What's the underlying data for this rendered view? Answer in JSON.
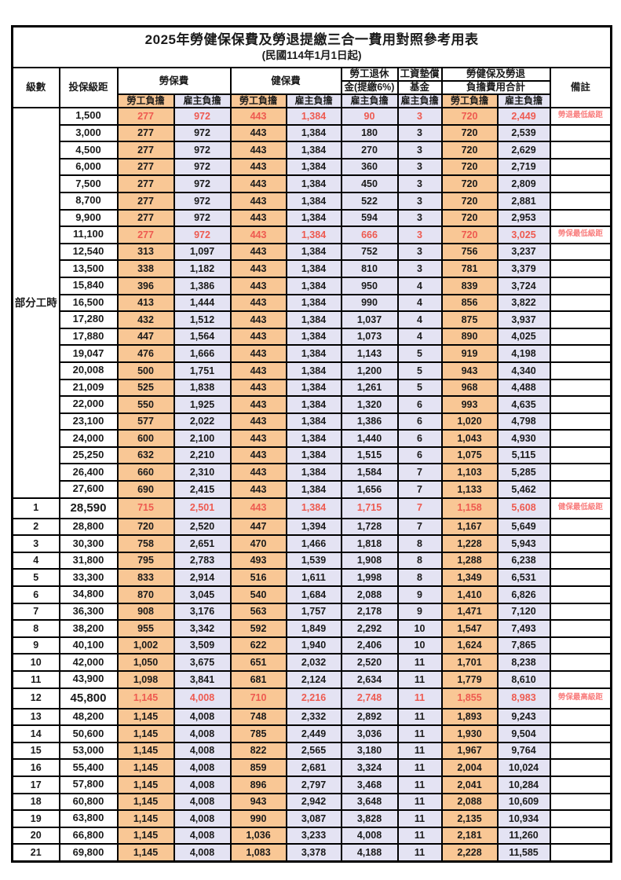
{
  "title": "2025年勞健保保費及勞退提繳三合一費用對照參考用表",
  "subtitle": "(民國114年1月1日起)",
  "header": {
    "level": "級數",
    "bracket": "投保級距",
    "labor_fee": "勞保費",
    "health_fee": "健保費",
    "pension_line1": "勞工退休",
    "pension_line2": "金(提繳6%)",
    "wage_fund_line1": "工資墊償",
    "wage_fund_line2": "基金",
    "total_line1": "勞健保及勞退",
    "total_line2": "負擔費用合計",
    "remark": "備註",
    "employee": "勞工負擔",
    "employer": "雇主負擔"
  },
  "part_time_label": "部分工時",
  "part_time_rowspan": 23,
  "colors": {
    "employee_bg": "#f9c795",
    "employer_bg": "#e4e3f3",
    "highlight_red": "#ee5a50",
    "note_red": "#f98080"
  },
  "rows": [
    {
      "level": "",
      "bracket": "1,500",
      "values": [
        "277",
        "972",
        "443",
        "1,384",
        "90",
        "3",
        "720",
        "2,449"
      ],
      "red": true,
      "note": "勞退最低級距",
      "em": false
    },
    {
      "level": "",
      "bracket": "3,000",
      "values": [
        "277",
        "972",
        "443",
        "1,384",
        "180",
        "3",
        "720",
        "2,539"
      ],
      "red": false,
      "note": "",
      "em": false
    },
    {
      "level": "",
      "bracket": "4,500",
      "values": [
        "277",
        "972",
        "443",
        "1,384",
        "270",
        "3",
        "720",
        "2,629"
      ],
      "red": false,
      "note": "",
      "em": false
    },
    {
      "level": "",
      "bracket": "6,000",
      "values": [
        "277",
        "972",
        "443",
        "1,384",
        "360",
        "3",
        "720",
        "2,719"
      ],
      "red": false,
      "note": "",
      "em": false
    },
    {
      "level": "",
      "bracket": "7,500",
      "values": [
        "277",
        "972",
        "443",
        "1,384",
        "450",
        "3",
        "720",
        "2,809"
      ],
      "red": false,
      "note": "",
      "em": false
    },
    {
      "level": "",
      "bracket": "8,700",
      "values": [
        "277",
        "972",
        "443",
        "1,384",
        "522",
        "3",
        "720",
        "2,881"
      ],
      "red": false,
      "note": "",
      "em": false
    },
    {
      "level": "",
      "bracket": "9,900",
      "values": [
        "277",
        "972",
        "443",
        "1,384",
        "594",
        "3",
        "720",
        "2,953"
      ],
      "red": false,
      "note": "",
      "em": false
    },
    {
      "level": "",
      "bracket": "11,100",
      "values": [
        "277",
        "972",
        "443",
        "1,384",
        "666",
        "3",
        "720",
        "3,025"
      ],
      "red": true,
      "note": "勞保最低級距",
      "em": false
    },
    {
      "level": "",
      "bracket": "12,540",
      "values": [
        "313",
        "1,097",
        "443",
        "1,384",
        "752",
        "3",
        "756",
        "3,237"
      ],
      "red": false,
      "note": "",
      "em": false
    },
    {
      "level": "",
      "bracket": "13,500",
      "values": [
        "338",
        "1,182",
        "443",
        "1,384",
        "810",
        "3",
        "781",
        "3,379"
      ],
      "red": false,
      "note": "",
      "em": false
    },
    {
      "level": "",
      "bracket": "15,840",
      "values": [
        "396",
        "1,386",
        "443",
        "1,384",
        "950",
        "4",
        "839",
        "3,724"
      ],
      "red": false,
      "note": "",
      "em": false
    },
    {
      "level": "",
      "bracket": "16,500",
      "values": [
        "413",
        "1,444",
        "443",
        "1,384",
        "990",
        "4",
        "856",
        "3,822"
      ],
      "red": false,
      "note": "",
      "em": false
    },
    {
      "level": "",
      "bracket": "17,280",
      "values": [
        "432",
        "1,512",
        "443",
        "1,384",
        "1,037",
        "4",
        "875",
        "3,937"
      ],
      "red": false,
      "note": "",
      "em": false
    },
    {
      "level": "",
      "bracket": "17,880",
      "values": [
        "447",
        "1,564",
        "443",
        "1,384",
        "1,073",
        "4",
        "890",
        "4,025"
      ],
      "red": false,
      "note": "",
      "em": false
    },
    {
      "level": "",
      "bracket": "19,047",
      "values": [
        "476",
        "1,666",
        "443",
        "1,384",
        "1,143",
        "5",
        "919",
        "4,198"
      ],
      "red": false,
      "note": "",
      "em": false
    },
    {
      "level": "",
      "bracket": "20,008",
      "values": [
        "500",
        "1,751",
        "443",
        "1,384",
        "1,200",
        "5",
        "943",
        "4,340"
      ],
      "red": false,
      "note": "",
      "em": false
    },
    {
      "level": "",
      "bracket": "21,009",
      "values": [
        "525",
        "1,838",
        "443",
        "1,384",
        "1,261",
        "5",
        "968",
        "4,488"
      ],
      "red": false,
      "note": "",
      "em": false
    },
    {
      "level": "",
      "bracket": "22,000",
      "values": [
        "550",
        "1,925",
        "443",
        "1,384",
        "1,320",
        "6",
        "993",
        "4,635"
      ],
      "red": false,
      "note": "",
      "em": false
    },
    {
      "level": "",
      "bracket": "23,100",
      "values": [
        "577",
        "2,022",
        "443",
        "1,384",
        "1,386",
        "6",
        "1,020",
        "4,798"
      ],
      "red": false,
      "note": "",
      "em": false
    },
    {
      "level": "",
      "bracket": "24,000",
      "values": [
        "600",
        "2,100",
        "443",
        "1,384",
        "1,440",
        "6",
        "1,043",
        "4,930"
      ],
      "red": false,
      "note": "",
      "em": false
    },
    {
      "level": "",
      "bracket": "25,250",
      "values": [
        "632",
        "2,210",
        "443",
        "1,384",
        "1,515",
        "6",
        "1,075",
        "5,115"
      ],
      "red": false,
      "note": "",
      "em": false
    },
    {
      "level": "",
      "bracket": "26,400",
      "values": [
        "660",
        "2,310",
        "443",
        "1,384",
        "1,584",
        "7",
        "1,103",
        "5,285"
      ],
      "red": false,
      "note": "",
      "em": false
    },
    {
      "level": "",
      "bracket": "27,600",
      "values": [
        "690",
        "2,415",
        "443",
        "1,384",
        "1,656",
        "7",
        "1,133",
        "5,462"
      ],
      "red": false,
      "note": "",
      "em": false
    },
    {
      "level": "1",
      "bracket": "28,590",
      "values": [
        "715",
        "2,501",
        "443",
        "1,384",
        "1,715",
        "7",
        "1,158",
        "5,608"
      ],
      "red": true,
      "note": "健保最低級距",
      "em": true
    },
    {
      "level": "2",
      "bracket": "28,800",
      "values": [
        "720",
        "2,520",
        "447",
        "1,394",
        "1,728",
        "7",
        "1,167",
        "5,649"
      ],
      "red": false,
      "note": "",
      "em": false
    },
    {
      "level": "3",
      "bracket": "30,300",
      "values": [
        "758",
        "2,651",
        "470",
        "1,466",
        "1,818",
        "8",
        "1,228",
        "5,943"
      ],
      "red": false,
      "note": "",
      "em": false
    },
    {
      "level": "4",
      "bracket": "31,800",
      "values": [
        "795",
        "2,783",
        "493",
        "1,539",
        "1,908",
        "8",
        "1,288",
        "6,238"
      ],
      "red": false,
      "note": "",
      "em": false
    },
    {
      "level": "5",
      "bracket": "33,300",
      "values": [
        "833",
        "2,914",
        "516",
        "1,611",
        "1,998",
        "8",
        "1,349",
        "6,531"
      ],
      "red": false,
      "note": "",
      "em": false
    },
    {
      "level": "6",
      "bracket": "34,800",
      "values": [
        "870",
        "3,045",
        "540",
        "1,684",
        "2,088",
        "9",
        "1,410",
        "6,826"
      ],
      "red": false,
      "note": "",
      "em": false
    },
    {
      "level": "7",
      "bracket": "36,300",
      "values": [
        "908",
        "3,176",
        "563",
        "1,757",
        "2,178",
        "9",
        "1,471",
        "7,120"
      ],
      "red": false,
      "note": "",
      "em": false
    },
    {
      "level": "8",
      "bracket": "38,200",
      "values": [
        "955",
        "3,342",
        "592",
        "1,849",
        "2,292",
        "10",
        "1,547",
        "7,493"
      ],
      "red": false,
      "note": "",
      "em": false
    },
    {
      "level": "9",
      "bracket": "40,100",
      "values": [
        "1,002",
        "3,509",
        "622",
        "1,940",
        "2,406",
        "10",
        "1,624",
        "7,865"
      ],
      "red": false,
      "note": "",
      "em": false
    },
    {
      "level": "10",
      "bracket": "42,000",
      "values": [
        "1,050",
        "3,675",
        "651",
        "2,032",
        "2,520",
        "11",
        "1,701",
        "8,238"
      ],
      "red": false,
      "note": "",
      "em": false
    },
    {
      "level": "11",
      "bracket": "43,900",
      "values": [
        "1,098",
        "3,841",
        "681",
        "2,124",
        "2,634",
        "11",
        "1,779",
        "8,610"
      ],
      "red": false,
      "note": "",
      "em": false
    },
    {
      "level": "12",
      "bracket": "45,800",
      "values": [
        "1,145",
        "4,008",
        "710",
        "2,216",
        "2,748",
        "11",
        "1,855",
        "8,983"
      ],
      "red": true,
      "note": "勞保最高級距",
      "em": true
    },
    {
      "level": "13",
      "bracket": "48,200",
      "values": [
        "1,145",
        "4,008",
        "748",
        "2,332",
        "2,892",
        "11",
        "1,893",
        "9,243"
      ],
      "red": false,
      "note": "",
      "em": false
    },
    {
      "level": "14",
      "bracket": "50,600",
      "values": [
        "1,145",
        "4,008",
        "785",
        "2,449",
        "3,036",
        "11",
        "1,930",
        "9,504"
      ],
      "red": false,
      "note": "",
      "em": false
    },
    {
      "level": "15",
      "bracket": "53,000",
      "values": [
        "1,145",
        "4,008",
        "822",
        "2,565",
        "3,180",
        "11",
        "1,967",
        "9,764"
      ],
      "red": false,
      "note": "",
      "em": false
    },
    {
      "level": "16",
      "bracket": "55,400",
      "values": [
        "1,145",
        "4,008",
        "859",
        "2,681",
        "3,324",
        "11",
        "2,004",
        "10,024"
      ],
      "red": false,
      "note": "",
      "em": false
    },
    {
      "level": "17",
      "bracket": "57,800",
      "values": [
        "1,145",
        "4,008",
        "896",
        "2,797",
        "3,468",
        "11",
        "2,041",
        "10,284"
      ],
      "red": false,
      "note": "",
      "em": false
    },
    {
      "level": "18",
      "bracket": "60,800",
      "values": [
        "1,145",
        "4,008",
        "943",
        "2,942",
        "3,648",
        "11",
        "2,088",
        "10,609"
      ],
      "red": false,
      "note": "",
      "em": false
    },
    {
      "level": "19",
      "bracket": "63,800",
      "values": [
        "1,145",
        "4,008",
        "990",
        "3,087",
        "3,828",
        "11",
        "2,135",
        "10,934"
      ],
      "red": false,
      "note": "",
      "em": false
    },
    {
      "level": "20",
      "bracket": "66,800",
      "values": [
        "1,145",
        "4,008",
        "1,036",
        "3,233",
        "4,008",
        "11",
        "2,181",
        "11,260"
      ],
      "red": false,
      "note": "",
      "em": false
    },
    {
      "level": "21",
      "bracket": "69,800",
      "values": [
        "1,145",
        "4,008",
        "1,083",
        "3,378",
        "4,188",
        "11",
        "2,228",
        "11,585"
      ],
      "red": false,
      "note": "",
      "em": false
    }
  ],
  "value_column_kinds": [
    "emp",
    "er",
    "emp",
    "er",
    "er",
    "er",
    "emp",
    "er"
  ]
}
